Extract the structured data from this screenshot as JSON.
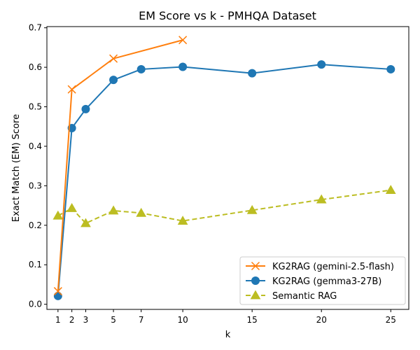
{
  "chart_data": {
    "type": "line",
    "title": "EM Score vs k - PMHQA Dataset",
    "xlabel": "k",
    "ylabel": "Exact Match (EM) Score",
    "xticks": [
      1,
      2,
      3,
      5,
      7,
      10,
      15,
      20,
      25
    ],
    "xlim": [
      0.2,
      26.3
    ],
    "ylim": [
      -0.013,
      0.703
    ],
    "yticks": [
      0.0,
      0.1,
      0.2,
      0.3,
      0.4,
      0.5,
      0.6,
      0.7
    ],
    "grid": false,
    "legend_position": "lower-right",
    "series": [
      {
        "name": "KG2RAG (gemini-2.5-flash)",
        "color": "#ff7f0e",
        "line_style": "solid",
        "marker": "x",
        "x": [
          1,
          2,
          5,
          10
        ],
        "y": [
          0.033,
          0.544,
          0.622,
          0.669
        ]
      },
      {
        "name": "KG2RAG (gemma3-27B)",
        "color": "#1f77b4",
        "line_style": "solid",
        "marker": "circle",
        "x": [
          1,
          2,
          3,
          5,
          7,
          10,
          15,
          20,
          25
        ],
        "y": [
          0.021,
          0.446,
          0.494,
          0.568,
          0.595,
          0.601,
          0.585,
          0.607,
          0.595
        ]
      },
      {
        "name": "Semantic RAG",
        "color": "#bcbd22",
        "line_style": "dashed",
        "marker": "triangle",
        "x": [
          1,
          2,
          3,
          5,
          7,
          10,
          15,
          20,
          25
        ],
        "y": [
          0.224,
          0.243,
          0.205,
          0.237,
          0.231,
          0.211,
          0.238,
          0.265,
          0.289
        ]
      }
    ]
  }
}
